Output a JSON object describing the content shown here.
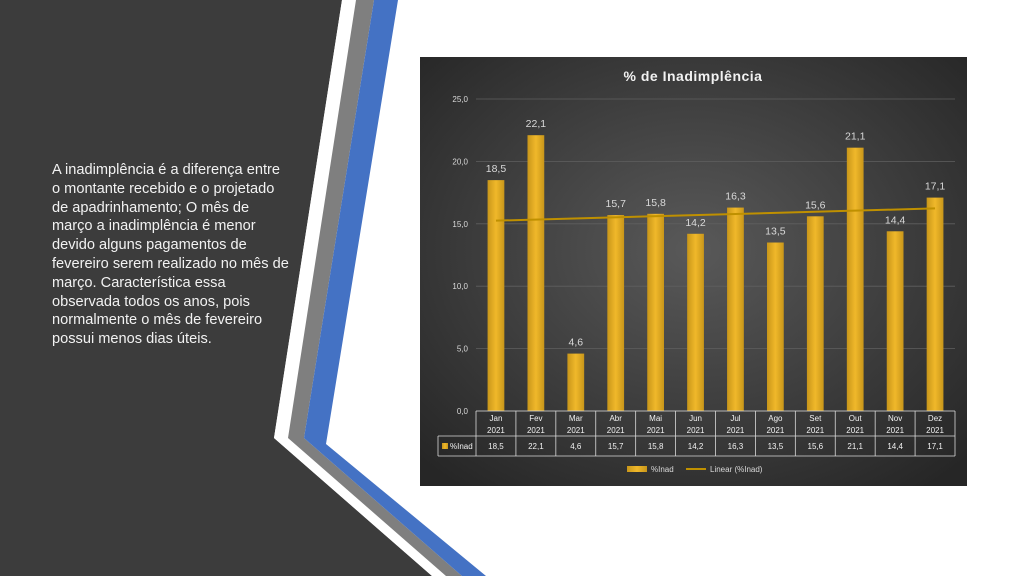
{
  "slide": {
    "body_text": "A inadimplência é a diferença entre o montante recebido e o projetado de apadrinhamento; O mês de março a inadimplência é menor devido alguns pagamentos de fevereiro serem realizado no mês de março. Característica essa observada todos os anos, pois normalmente o mês de fevereiro possui menos dias úteis.",
    "colors": {
      "left_panel": "#3c3c3c",
      "stripe_white": "#ffffff",
      "stripe_gray": "#7f7f7f",
      "stripe_blue": "#4472c4",
      "chart_bg": "#404040",
      "bar": "#d9a520",
      "trendline": "#bf9000"
    }
  },
  "chart_data": {
    "type": "bar",
    "title": "% de Inadimplência",
    "categories": [
      "Jan",
      "Fev",
      "Mar",
      "Abr",
      "Mai",
      "Jun",
      "Jul",
      "Ago",
      "Set",
      "Out",
      "Nov",
      "Dez"
    ],
    "category_year": "2021",
    "series": [
      {
        "name": "%Inad",
        "values": [
          18.5,
          22.1,
          4.6,
          15.7,
          15.8,
          14.2,
          16.3,
          13.5,
          15.6,
          21.1,
          14.4,
          17.1
        ]
      }
    ],
    "data_labels": [
      "18,5",
      "22,1",
      "4,6",
      "15,7",
      "15,8",
      "14,2",
      "16,3",
      "13,5",
      "15,6",
      "21,1",
      "14,4",
      "17,1"
    ],
    "table_row_label": "%Inad",
    "trendline": {
      "type": "linear",
      "name": "Linear (%Inad)"
    },
    "ylim": [
      0,
      25
    ],
    "yticks": [
      "0,0",
      "5,0",
      "10,0",
      "15,0",
      "20,0",
      "25,0"
    ],
    "grid": true,
    "legend_position": "bottom",
    "legend": [
      "%Inad",
      "Linear (%Inad)"
    ]
  }
}
